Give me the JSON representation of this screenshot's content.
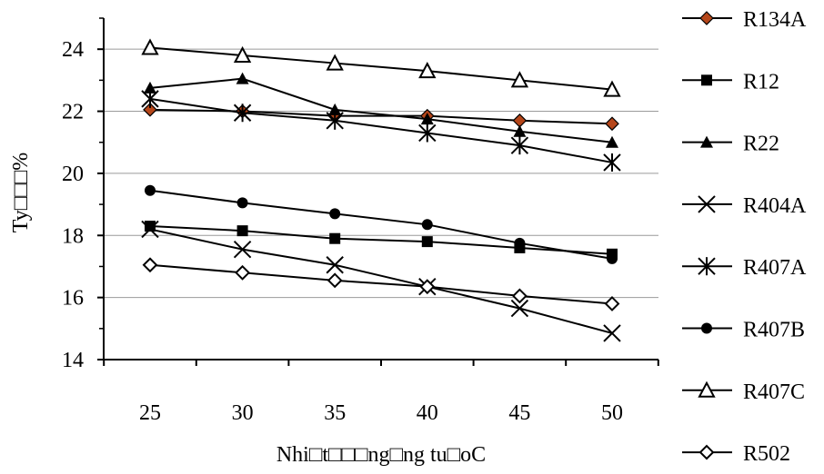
{
  "chart_data": {
    "type": "line",
    "title": "",
    "xlabel": "Nhi□t□□□ng□ng tu□oC",
    "ylabel": "Ty□□□%",
    "categories": [
      "25",
      "30",
      "35",
      "40",
      "45",
      "50"
    ],
    "ylim": [
      14,
      25
    ],
    "yticks": [
      14,
      16,
      18,
      20,
      22,
      24
    ],
    "grid": true,
    "legend_position": "right",
    "series": [
      {
        "name": "R134A",
        "marker": "diamond-filled",
        "color": "#b5461a",
        "values": [
          22.05,
          22.0,
          21.85,
          21.85,
          21.7,
          21.6
        ]
      },
      {
        "name": "R12",
        "marker": "square-filled",
        "color": "#000000",
        "values": [
          18.3,
          18.15,
          17.9,
          17.8,
          17.6,
          17.4
        ]
      },
      {
        "name": "R22",
        "marker": "triangle-filled",
        "color": "#000000",
        "values": [
          22.75,
          23.05,
          22.05,
          21.75,
          21.35,
          21.0
        ]
      },
      {
        "name": "R404A",
        "marker": "x",
        "color": "#000000",
        "values": [
          18.2,
          17.55,
          17.05,
          16.35,
          15.65,
          14.85
        ]
      },
      {
        "name": "R407A",
        "marker": "asterisk",
        "color": "#000000",
        "values": [
          22.4,
          21.95,
          21.7,
          21.3,
          20.9,
          20.35
        ]
      },
      {
        "name": "R407B",
        "marker": "circle-filled",
        "color": "#000000",
        "values": [
          19.45,
          19.05,
          18.7,
          18.35,
          17.75,
          17.25
        ]
      },
      {
        "name": "R407C",
        "marker": "triangle-open",
        "color": "#000000",
        "values": [
          24.05,
          23.8,
          23.55,
          23.3,
          23.0,
          22.7
        ]
      },
      {
        "name": "R502",
        "marker": "diamond-open",
        "color": "#000000",
        "values": [
          17.05,
          16.8,
          16.55,
          16.35,
          16.05,
          15.8
        ]
      }
    ]
  }
}
